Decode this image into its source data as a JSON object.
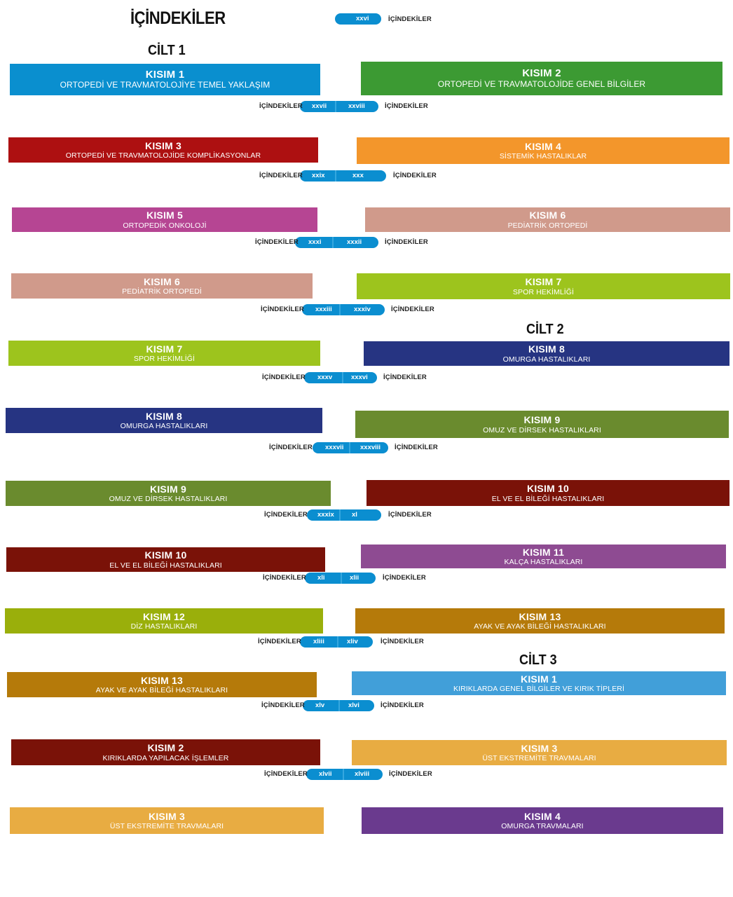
{
  "header": {
    "title": "İÇİNDEKİLER",
    "page_number": "xxvi",
    "page_label": "İÇİNDEKİLER"
  },
  "volumes": [
    "CİLT 1",
    "CİLT 2",
    "CİLT 3"
  ],
  "rows": [
    {
      "left": {
        "part": "KISIM 1",
        "subtitle": "ORTOPEDİ VE TRAVMATOLOJİYE TEMEL YAKLAŞIM",
        "color": "#0a8fcf"
      },
      "right": {
        "part": "KISIM 2",
        "subtitle": "ORTOPEDİ VE TRAVMATOLOJİDE GENEL BİLGİLER",
        "color": "#3c9a33"
      },
      "pages": [
        "xxvii",
        "xxviii"
      ],
      "label_left": "İÇİNDEKİLER",
      "label_right": "İÇİNDEKİLER"
    },
    {
      "left": {
        "part": "KISIM 3",
        "subtitle": "ORTOPEDİ VE TRAVMATOLOJİDE KOMPLİKASYONLAR",
        "color": "#ad1011"
      },
      "right": {
        "part": "KISIM 4",
        "subtitle": "SİSTEMİK HASTALIKLAR",
        "color": "#f3962b"
      },
      "pages": [
        "xxix",
        "xxx"
      ],
      "label_left": "İÇİNDEKİLER",
      "label_right": "İÇİNDEKİLER"
    },
    {
      "left": {
        "part": "KISIM 5",
        "subtitle": "ORTOPEDİK ONKOLOJİ",
        "color": "#b64593"
      },
      "right": {
        "part": "KISIM 6",
        "subtitle": "PEDİATRİK ORTOPEDİ",
        "color": "#d09a8b"
      },
      "pages": [
        "xxxi",
        "xxxii"
      ],
      "label_left": "İÇİNDEKİLER",
      "label_right": "İÇİNDEKİLER"
    },
    {
      "left": {
        "part": "KISIM 6",
        "subtitle": "PEDİATRİK ORTOPEDİ",
        "color": "#d09a8b"
      },
      "right": {
        "part": "KISIM 7",
        "subtitle": "SPOR HEKİMLİĞİ",
        "color": "#9dc41d"
      },
      "pages": [
        "xxxiii",
        "xxxiv"
      ],
      "label_left": "İÇİNDEKİLER",
      "label_right": "İÇİNDEKİLER"
    },
    {
      "left": {
        "part": "KISIM 7",
        "subtitle": "SPOR HEKİMLİĞİ",
        "color": "#9dc41d"
      },
      "right": {
        "part": "KISIM 8",
        "subtitle": "OMURGA HASTALIKLARI",
        "color": "#263482"
      },
      "pages": [
        "xxxv",
        "xxxvi"
      ],
      "label_left": "İÇİNDEKİLER",
      "label_right": "İÇİNDEKİLER"
    },
    {
      "left": {
        "part": "KISIM 8",
        "subtitle": "OMURGA HASTALIKLARI",
        "color": "#263482"
      },
      "right": {
        "part": "KISIM 9",
        "subtitle": "OMUZ VE DİRSEK HASTALIKLARI",
        "color": "#6a8b2e"
      },
      "pages": [
        "xxxvii",
        "xxxviii"
      ],
      "label_left": "İÇİNDEKİLER",
      "label_right": "İÇİNDEKİLER"
    },
    {
      "left": {
        "part": "KISIM 9",
        "subtitle": "OMUZ VE DİRSEK HASTALIKLARI",
        "color": "#6a8b2e"
      },
      "right": {
        "part": "KISIM 10",
        "subtitle": "EL VE EL BİLEĞİ HASTALIKLARI",
        "color": "#7a1208"
      },
      "pages": [
        "xxxix",
        "xl"
      ],
      "label_left": "İÇİNDEKİLER",
      "label_right": "İÇİNDEKİLER"
    },
    {
      "left": {
        "part": "KISIM 10",
        "subtitle": "EL VE EL BİLEĞİ HASTALIKLARI",
        "color": "#7a1208"
      },
      "right": {
        "part": "KISIM 11",
        "subtitle": "KALÇA HASTALIKLARI",
        "color": "#8e4b92"
      },
      "pages": [
        "xli",
        "xlii"
      ],
      "label_left": "İÇİNDEKİLER",
      "label_right": "İÇİNDEKİLER"
    },
    {
      "left": {
        "part": "KISIM 12",
        "subtitle": "DİZ HASTALIKLARI",
        "color": "#9aaf0b"
      },
      "right": {
        "part": "KISIM 13",
        "subtitle": "AYAK VE AYAK BİLEĞİ HASTALIKLARI",
        "color": "#b57a0a"
      },
      "pages": [
        "xliii",
        "xliv"
      ],
      "label_left": "İÇİNDEKİLER",
      "label_right": "İÇİNDEKİLER"
    },
    {
      "left": {
        "part": "KISIM 13",
        "subtitle": "AYAK VE AYAK BİLEĞİ HASTALIKLARI",
        "color": "#b57a0a"
      },
      "right": {
        "part": "KISIM 1",
        "subtitle": "KIRIKLARDA GENEL BİLGİLER VE KIRIK TİPLERİ",
        "color": "#419fd9"
      },
      "pages": [
        "xlv",
        "xlvi"
      ],
      "label_left": "İÇİNDEKİLER",
      "label_right": "İÇİNDEKİLER"
    },
    {
      "left": {
        "part": "KISIM 2",
        "subtitle": "KIRIKLARDA YAPILACAK İŞLEMLER",
        "color": "#7a1208"
      },
      "right": {
        "part": "KISIM 3",
        "subtitle": "ÜST EKSTREMİTE TRAVMALARI",
        "color": "#e8ac42"
      },
      "pages": [
        "xlvii",
        "xlviii"
      ],
      "label_left": "İÇİNDEKİLER",
      "label_right": "İÇİNDEKİLER"
    },
    {
      "left": {
        "part": "KISIM 3",
        "subtitle": "ÜST EKSTREMİTE TRAVMALARI",
        "color": "#e8ac42"
      },
      "right": {
        "part": "KISIM 4",
        "subtitle": "OMURGA TRAVMALARI",
        "color": "#6a3a8e"
      }
    }
  ]
}
